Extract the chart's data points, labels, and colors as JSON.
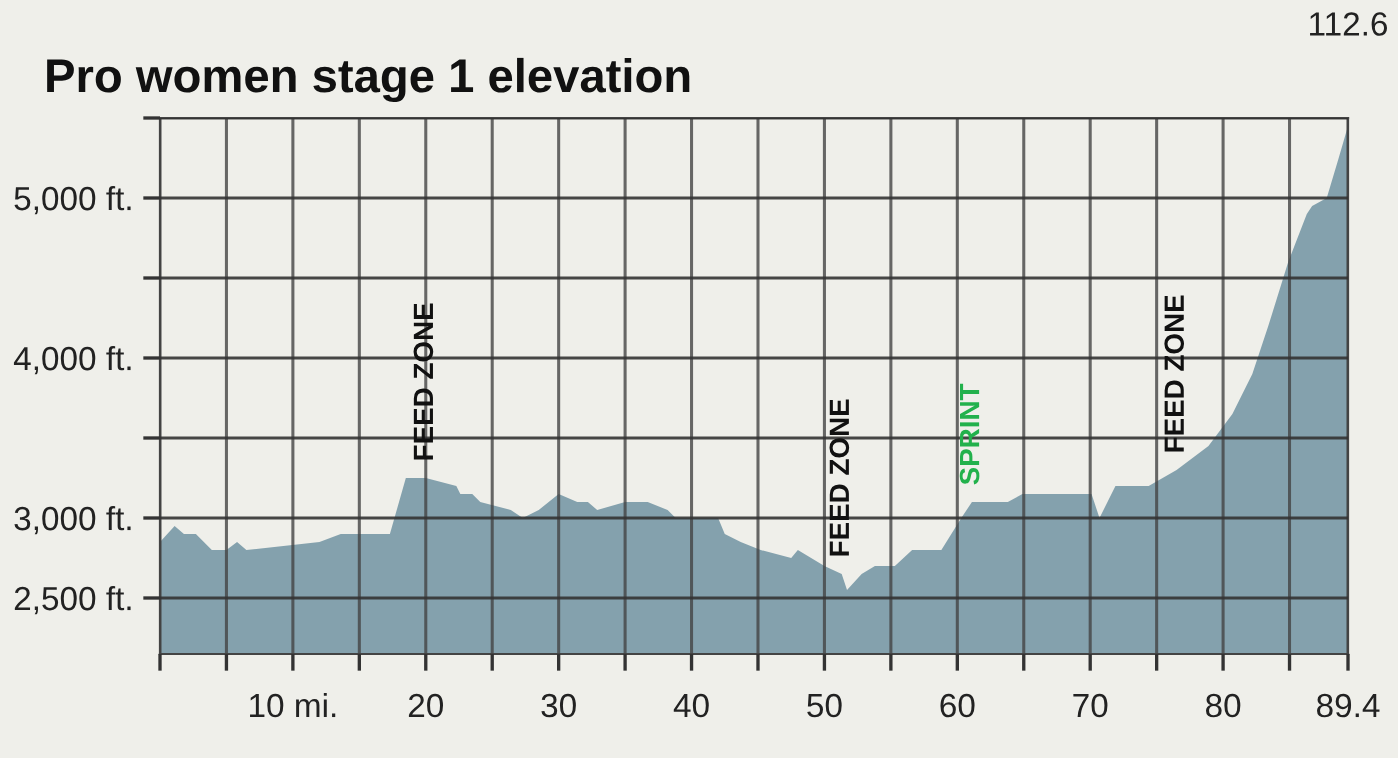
{
  "chart_data": {
    "type": "area",
    "title": "Pro women stage 1 elevation",
    "x": [
      0,
      1.1,
      1.8,
      2.7,
      3.9,
      5.0,
      5.8,
      6.5,
      12,
      13.6,
      17.3,
      18.5,
      20,
      22.3,
      22.6,
      23.5,
      24.1,
      26.4,
      27.3,
      28.5,
      30,
      31.4,
      32.2,
      32.9,
      35,
      36.7,
      38.2,
      38.8,
      39.2,
      42,
      42.5,
      43.7,
      45.2,
      47.5,
      48,
      50,
      51.3,
      51.7,
      52.8,
      53.8,
      55.3,
      56.6,
      58.8,
      60.3,
      61.1,
      63.8,
      64.9,
      69.4,
      70.1,
      70.7,
      71.9,
      74.4,
      76.5,
      78.9,
      80.7,
      82.2,
      83.4,
      84.9,
      86.3,
      86.7,
      87.8,
      88.7,
      89.4
    ],
    "series": [
      {
        "color": "#84a1ad",
        "values": [
          2850,
          2950,
          2900,
          2900,
          2800,
          2800,
          2850,
          2800,
          2850,
          2900,
          2900,
          3250,
          3250,
          3200,
          3150,
          3150,
          3100,
          3050,
          3000,
          3050,
          3150,
          3100,
          3100,
          3050,
          3100,
          3100,
          3050,
          3000,
          3000,
          3000,
          2900,
          2850,
          2800,
          2750,
          2800,
          2700,
          2650,
          2550,
          2650,
          2700,
          2700,
          2800,
          2800,
          3000,
          3100,
          3100,
          3150,
          3150,
          3150,
          3000,
          3200,
          3200,
          3300,
          3450,
          3650,
          3900,
          4200,
          4600,
          4900,
          4950,
          5000,
          5250,
          5450
        ]
      }
    ],
    "xlim": [
      0,
      89.4
    ],
    "xticks": [
      {
        "value": 0,
        "label": null
      },
      {
        "value": 5,
        "label": null
      },
      {
        "value": 10,
        "label": "10 mi."
      },
      {
        "value": 15,
        "label": null
      },
      20,
      {
        "value": 25,
        "label": null
      },
      30,
      {
        "value": 35,
        "label": null
      },
      40,
      {
        "value": 45,
        "label": null
      },
      50,
      {
        "value": 55,
        "label": null
      },
      60,
      {
        "value": 65,
        "label": null
      },
      70,
      {
        "value": 75,
        "label": null
      },
      80,
      {
        "value": 85,
        "label": null
      },
      89.4
    ],
    "ylim": [
      2150,
      5500
    ],
    "yticks": [
      {
        "value": 2500,
        "label": "2,500 ft."
      },
      {
        "value": 3000,
        "label": "3,000 ft."
      },
      {
        "value": 3500,
        "label": null
      },
      {
        "value": 4000,
        "label": "4,000 ft."
      },
      {
        "value": 4500,
        "label": null
      },
      {
        "value": 5000,
        "label": "5,000 ft."
      },
      {
        "value": 5500,
        "label": null
      }
    ],
    "grid": true,
    "annotations": [
      {
        "text": "FEED ZONE",
        "x": 20,
        "y": 3250
      },
      {
        "text": "FEED ZONE",
        "x": 51.3,
        "y": 2650
      },
      {
        "text": "SPRINT",
        "x": 61.1,
        "y": 3100
      },
      {
        "text": "FEED ZONE",
        "x": 76.5,
        "y": 3300
      },
      "112.6"
    ]
  }
}
